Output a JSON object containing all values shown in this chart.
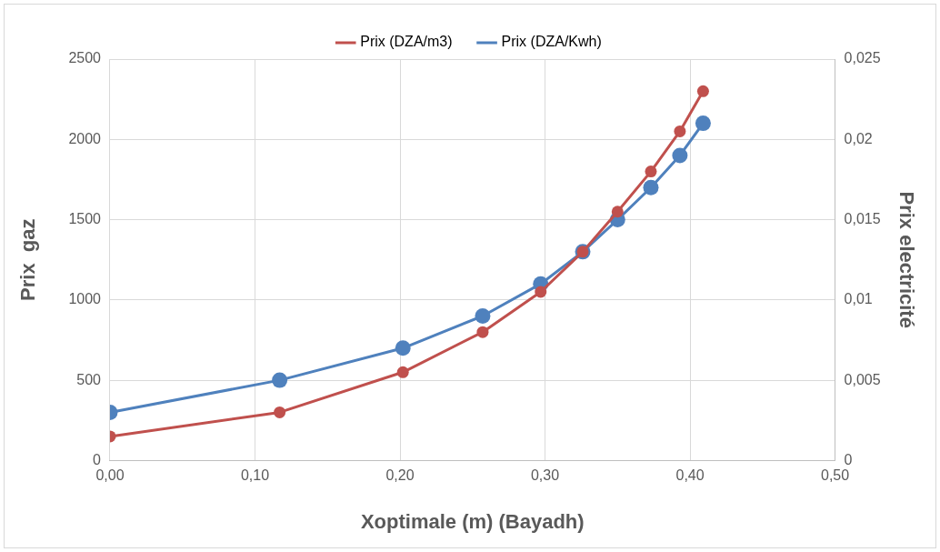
{
  "chart_data": {
    "type": "line",
    "xlabel": "Xoptimale (m) (Bayadh)",
    "ylabel": "Prix  gaz",
    "y2label": "Prix electricité",
    "x": [
      0,
      0.117,
      0.202,
      0.257,
      0.297,
      0.326,
      0.35,
      0.373,
      0.393,
      0.409
    ],
    "series": [
      {
        "name": "Prix (DZA/m3)",
        "color": "#c0504d",
        "values": [
          150,
          300,
          550,
          800,
          1050,
          1300,
          1550,
          1800,
          2050,
          2300
        ]
      },
      {
        "name": "Prix (DZA/Kwh)",
        "color": "#4f81bd",
        "axis": "y2",
        "values": [
          0.003,
          0.005,
          0.007,
          0.009,
          0.011,
          0.013,
          0.015,
          0.017,
          0.019,
          0.021
        ]
      }
    ],
    "xlim": [
      0,
      0.5
    ],
    "xticks": [
      {
        "value": 0,
        "label": "0,00"
      },
      {
        "value": 0.1,
        "label": "0,10"
      },
      {
        "value": 0.2,
        "label": "0,20"
      },
      {
        "value": 0.3,
        "label": "0,30"
      },
      {
        "value": 0.4,
        "label": "0,40"
      },
      {
        "value": 0.5,
        "label": "0,50"
      }
    ],
    "ylim": [
      0,
      2500
    ],
    "yticks": [
      0,
      500,
      1000,
      1500,
      2000,
      2500
    ],
    "y2lim": [
      0,
      0.025
    ],
    "y2ticks": [
      0,
      {
        "value": 0.005,
        "label": "0,005"
      },
      {
        "value": 0.01,
        "label": "0,01"
      },
      {
        "value": 0.015,
        "label": "0,015"
      },
      {
        "value": 0.02,
        "label": "0,02"
      },
      {
        "value": 0.025,
        "label": "0,025"
      }
    ],
    "grid": true,
    "legend": "top",
    "marker": "circle",
    "line_style": "solid"
  }
}
